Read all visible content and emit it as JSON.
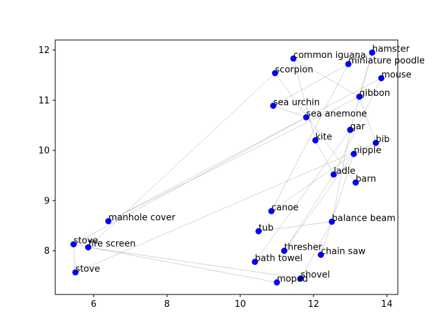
{
  "chart_data": {
    "type": "scatter",
    "title": "",
    "xlabel": "",
    "ylabel": "",
    "xlim": [
      4.95,
      14.3
    ],
    "ylim": [
      7.13,
      12.2
    ],
    "x_ticks": [
      6,
      8,
      10,
      12,
      14
    ],
    "y_ticks": [
      8,
      9,
      10,
      11,
      12
    ],
    "marker_color": "#0000ff",
    "edge_color": "#888888",
    "grid": false,
    "points": [
      {
        "label": "hamster",
        "x": 13.6,
        "y": 11.95
      },
      {
        "label": "common iguana",
        "x": 11.45,
        "y": 11.83
      },
      {
        "label": "miniature poodle",
        "x": 12.95,
        "y": 11.72
      },
      {
        "label": "scorpion",
        "x": 10.95,
        "y": 11.54
      },
      {
        "label": "mouse",
        "x": 13.85,
        "y": 11.44
      },
      {
        "label": "gibbon",
        "x": 13.25,
        "y": 11.07
      },
      {
        "label": "sea urchin",
        "x": 10.9,
        "y": 10.89
      },
      {
        "label": "sea anemone",
        "x": 11.8,
        "y": 10.66
      },
      {
        "label": "gar",
        "x": 13.0,
        "y": 10.41
      },
      {
        "label": "kite",
        "x": 12.05,
        "y": 10.2
      },
      {
        "label": "bib",
        "x": 13.7,
        "y": 10.15
      },
      {
        "label": "nipple",
        "x": 13.1,
        "y": 9.93
      },
      {
        "label": "ladle",
        "x": 12.55,
        "y": 9.52
      },
      {
        "label": "barn",
        "x": 13.15,
        "y": 9.36
      },
      {
        "label": "canoe",
        "x": 10.85,
        "y": 8.79
      },
      {
        "label": "manhole cover",
        "x": 6.4,
        "y": 8.59
      },
      {
        "label": "balance beam",
        "x": 12.5,
        "y": 8.58
      },
      {
        "label": "tub",
        "x": 10.5,
        "y": 8.39
      },
      {
        "label": "stove",
        "x": 5.45,
        "y": 8.13
      },
      {
        "label": "fire screen",
        "x": 5.85,
        "y": 8.07
      },
      {
        "label": "thresher",
        "x": 11.2,
        "y": 8.0
      },
      {
        "label": "chain saw",
        "x": 12.2,
        "y": 7.92
      },
      {
        "label": "bath towel",
        "x": 10.4,
        "y": 7.78
      },
      {
        "label": "stove",
        "x": 5.5,
        "y": 7.57
      },
      {
        "label": "shovel",
        "x": 11.65,
        "y": 7.45
      },
      {
        "label": "moped",
        "x": 11.0,
        "y": 7.37
      }
    ],
    "edges": [
      [
        0,
        2
      ],
      [
        0,
        5
      ],
      [
        0,
        8
      ],
      [
        1,
        9
      ],
      [
        1,
        5
      ],
      [
        2,
        6
      ],
      [
        2,
        14
      ],
      [
        3,
        13
      ],
      [
        3,
        19
      ],
      [
        4,
        7
      ],
      [
        4,
        12
      ],
      [
        5,
        10
      ],
      [
        5,
        15
      ],
      [
        6,
        7
      ],
      [
        7,
        18
      ],
      [
        7,
        15
      ],
      [
        8,
        16
      ],
      [
        8,
        22
      ],
      [
        9,
        12
      ],
      [
        10,
        23
      ],
      [
        11,
        14
      ],
      [
        11,
        20
      ],
      [
        11,
        21
      ],
      [
        12,
        20
      ],
      [
        16,
        17
      ],
      [
        16,
        24
      ],
      [
        18,
        23
      ],
      [
        18,
        25
      ],
      [
        19,
        24
      ]
    ]
  }
}
